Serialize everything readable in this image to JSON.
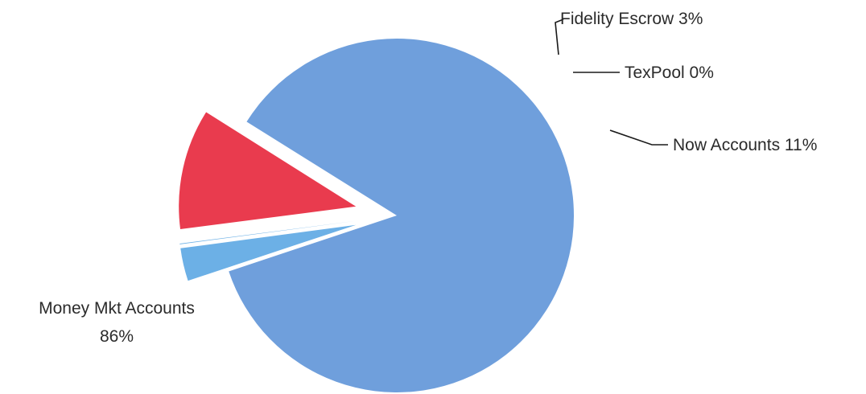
{
  "chart_data": {
    "type": "pie",
    "title": "",
    "slices": [
      {
        "name": "Money Mkt Accounts",
        "value": 86,
        "label": "86%",
        "color": "#6f9fdc",
        "exploded": false
      },
      {
        "name": "Fidelity Escrow",
        "value": 3,
        "label": "3%",
        "color": "#6cb0e6",
        "exploded": true
      },
      {
        "name": "TexPool",
        "value": 0,
        "label": "0%",
        "color": "#6cb0e6",
        "exploded": true
      },
      {
        "name": "Now Accounts",
        "value": 11,
        "label": "11%",
        "color": "#e93b4e",
        "exploded": true
      }
    ],
    "legend": "none",
    "labels": [
      {
        "line1": "Money Mkt Accounts",
        "line2": "86%"
      },
      {
        "text": "Fidelity Escrow 3%"
      },
      {
        "text": "TexPool 0%"
      },
      {
        "text": "Now Accounts 11%"
      }
    ]
  }
}
